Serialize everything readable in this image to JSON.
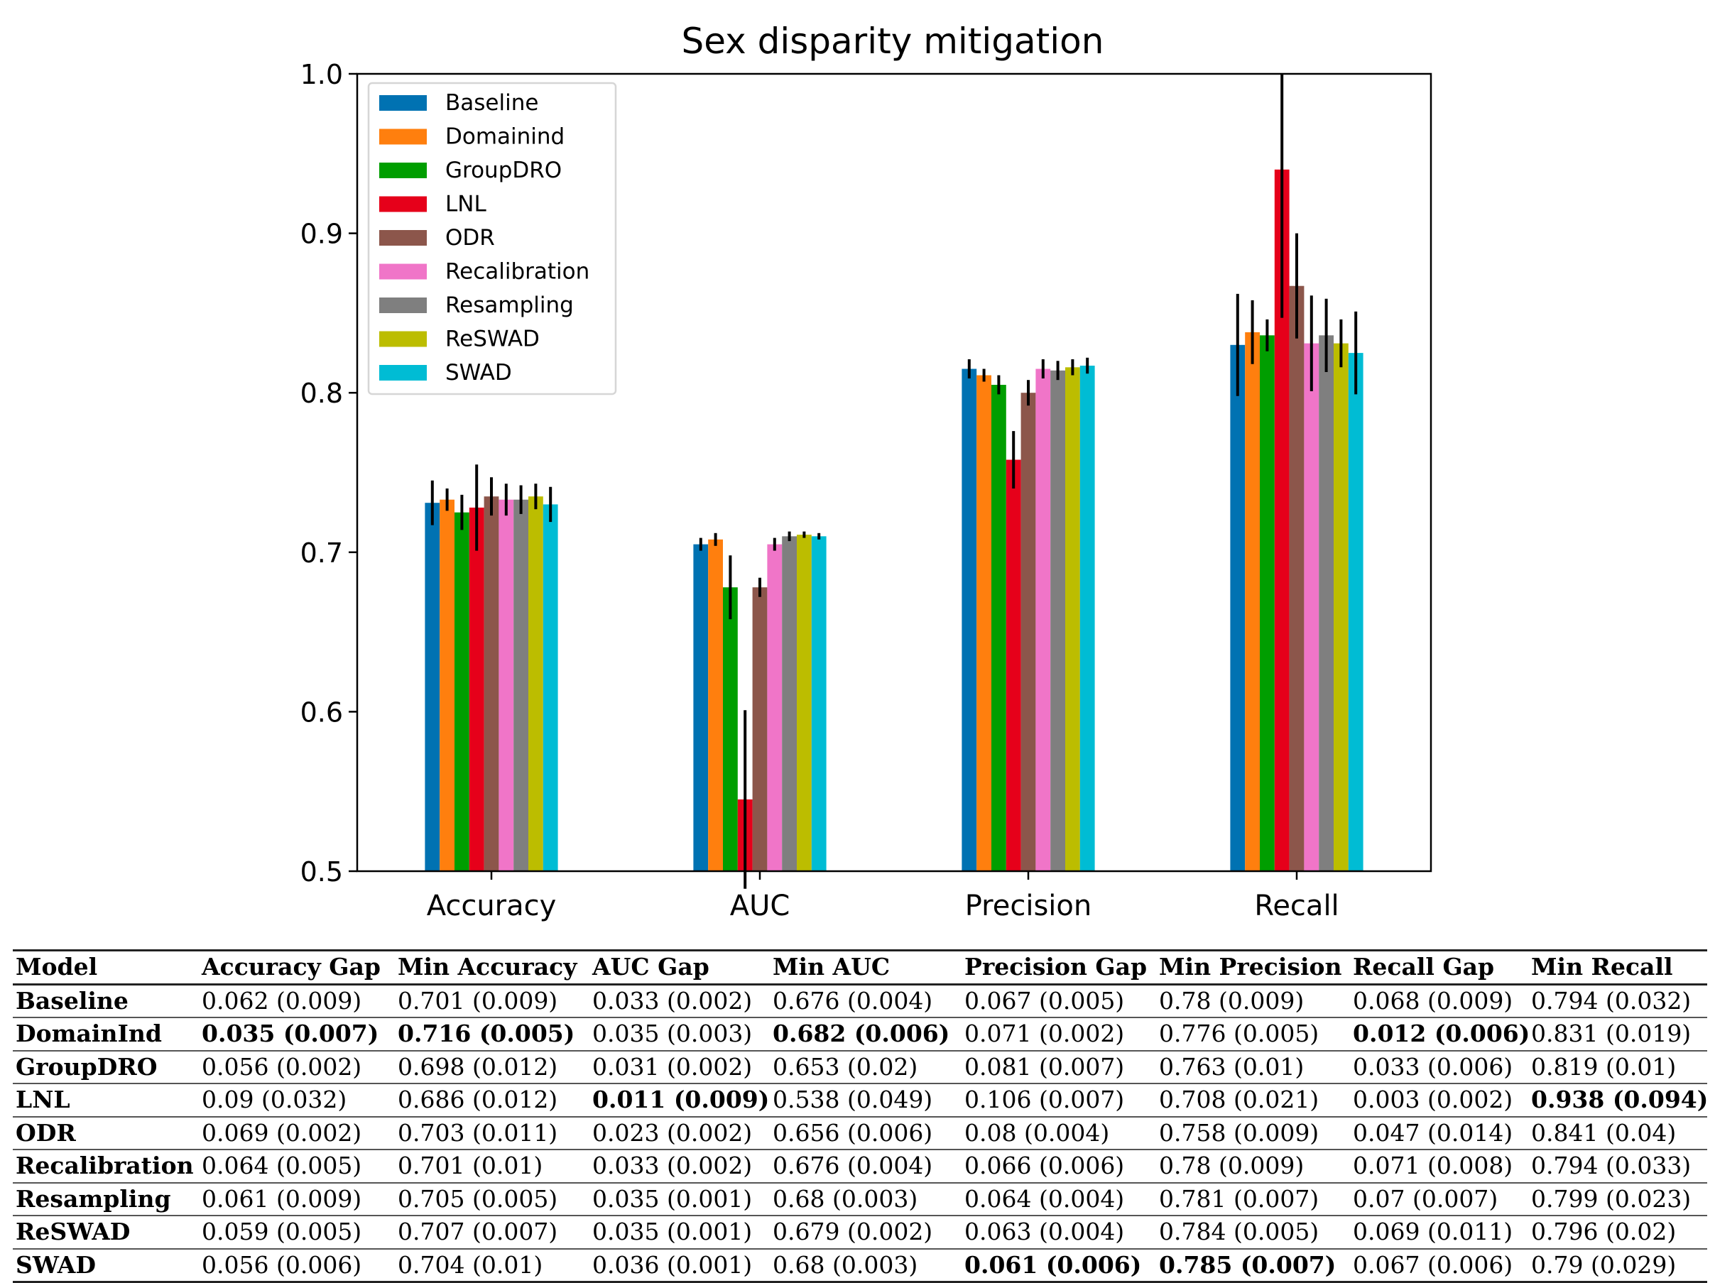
{
  "chart_data": {
    "type": "bar",
    "title": "Sex disparity mitigation",
    "xlabel": "",
    "ylabel": "",
    "ylim": [
      0.5,
      1.0
    ],
    "yticks": [
      "0.5",
      "0.6",
      "0.7",
      "0.8",
      "0.9",
      "1.0"
    ],
    "categories": [
      "Accuracy",
      "AUC",
      "Precision",
      "Recall"
    ],
    "legend_position": "upper-left",
    "series": [
      {
        "name": "Baseline",
        "color": "#0072b2",
        "values": [
          0.731,
          0.705,
          0.815,
          0.83
        ],
        "errors": [
          0.014,
          0.004,
          0.006,
          0.032
        ]
      },
      {
        "name": "Domainind",
        "color": "#ff7f0e",
        "values": [
          0.733,
          0.708,
          0.811,
          0.838
        ],
        "errors": [
          0.007,
          0.004,
          0.004,
          0.02
        ]
      },
      {
        "name": "GroupDRO",
        "color": "#009e00",
        "values": [
          0.725,
          0.678,
          0.805,
          0.836
        ],
        "errors": [
          0.011,
          0.02,
          0.006,
          0.01
        ]
      },
      {
        "name": "LNL",
        "color": "#e6001a",
        "values": [
          0.728,
          0.545,
          0.758,
          0.94
        ],
        "errors": [
          0.027,
          0.056,
          0.018,
          0.093
        ]
      },
      {
        "name": "ODR",
        "color": "#8c564b",
        "values": [
          0.735,
          0.678,
          0.8,
          0.867
        ],
        "errors": [
          0.012,
          0.006,
          0.008,
          0.033
        ]
      },
      {
        "name": "Recalibration",
        "color": "#f075c8",
        "values": [
          0.733,
          0.705,
          0.815,
          0.831
        ],
        "errors": [
          0.01,
          0.004,
          0.006,
          0.03
        ]
      },
      {
        "name": "Resampling",
        "color": "#7f7f7f",
        "values": [
          0.733,
          0.71,
          0.814,
          0.836
        ],
        "errors": [
          0.009,
          0.003,
          0.006,
          0.023
        ]
      },
      {
        "name": "ReSWAD",
        "color": "#bcbd00",
        "values": [
          0.735,
          0.711,
          0.816,
          0.831
        ],
        "errors": [
          0.008,
          0.002,
          0.005,
          0.015
        ]
      },
      {
        "name": "SWAD",
        "color": "#00bcd4",
        "values": [
          0.73,
          0.71,
          0.817,
          0.825
        ],
        "errors": [
          0.011,
          0.002,
          0.005,
          0.026
        ]
      }
    ]
  },
  "table": {
    "headers": [
      "Model",
      "Accuracy Gap",
      "Min Accuracy",
      "AUC Gap",
      "Min AUC",
      "Precision Gap",
      "Min Precision",
      "Recall Gap",
      "Min Recall"
    ],
    "rows": [
      {
        "model": "Baseline",
        "cells": [
          "0.062 (0.009)",
          "0.701 (0.009)",
          "0.033 (0.002)",
          "0.676 (0.004)",
          "0.067 (0.005)",
          "0.78 (0.009)",
          "0.068 (0.009)",
          "0.794 (0.032)"
        ],
        "bold": []
      },
      {
        "model": "DomainInd",
        "cells": [
          "0.035 (0.007)",
          "0.716 (0.005)",
          "0.035 (0.003)",
          "0.682 (0.006)",
          "0.071 (0.002)",
          "0.776 (0.005)",
          "0.012 (0.006)",
          "0.831 (0.019)"
        ],
        "bold": [
          0,
          1,
          3,
          6
        ]
      },
      {
        "model": "GroupDRO",
        "cells": [
          "0.056 (0.002)",
          "0.698 (0.012)",
          "0.031 (0.002)",
          "0.653 (0.02)",
          "0.081 (0.007)",
          "0.763 (0.01)",
          "0.033 (0.006)",
          "0.819 (0.01)"
        ],
        "bold": []
      },
      {
        "model": "LNL",
        "cells": [
          "0.09 (0.032)",
          "0.686 (0.012)",
          "0.011 (0.009)",
          "0.538 (0.049)",
          "0.106 (0.007)",
          "0.708 (0.021)",
          "0.003 (0.002)",
          "0.938 (0.094)"
        ],
        "bold": [
          2,
          7
        ]
      },
      {
        "model": "ODR",
        "cells": [
          "0.069 (0.002)",
          "0.703 (0.011)",
          "0.023 (0.002)",
          "0.656 (0.006)",
          "0.08 (0.004)",
          "0.758 (0.009)",
          "0.047 (0.014)",
          "0.841 (0.04)"
        ],
        "bold": []
      },
      {
        "model": "Recalibration",
        "cells": [
          "0.064 (0.005)",
          "0.701 (0.01)",
          "0.033 (0.002)",
          "0.676 (0.004)",
          "0.066 (0.006)",
          "0.78 (0.009)",
          "0.071 (0.008)",
          "0.794 (0.033)"
        ],
        "bold": []
      },
      {
        "model": "Resampling",
        "cells": [
          "0.061 (0.009)",
          "0.705 (0.005)",
          "0.035 (0.001)",
          "0.68 (0.003)",
          "0.064 (0.004)",
          "0.781 (0.007)",
          "0.07 (0.007)",
          "0.799 (0.023)"
        ],
        "bold": []
      },
      {
        "model": "ReSWAD",
        "cells": [
          "0.059 (0.005)",
          "0.707 (0.007)",
          "0.035 (0.001)",
          "0.679 (0.002)",
          "0.063 (0.004)",
          "0.784 (0.005)",
          "0.069 (0.011)",
          "0.796 (0.02)"
        ],
        "bold": []
      },
      {
        "model": "SWAD",
        "cells": [
          "0.056 (0.006)",
          "0.704 (0.01)",
          "0.036 (0.001)",
          "0.68 (0.003)",
          "0.061 (0.006)",
          "0.785 (0.007)",
          "0.067 (0.006)",
          "0.79 (0.029)"
        ],
        "bold": [
          4,
          5
        ]
      }
    ]
  }
}
